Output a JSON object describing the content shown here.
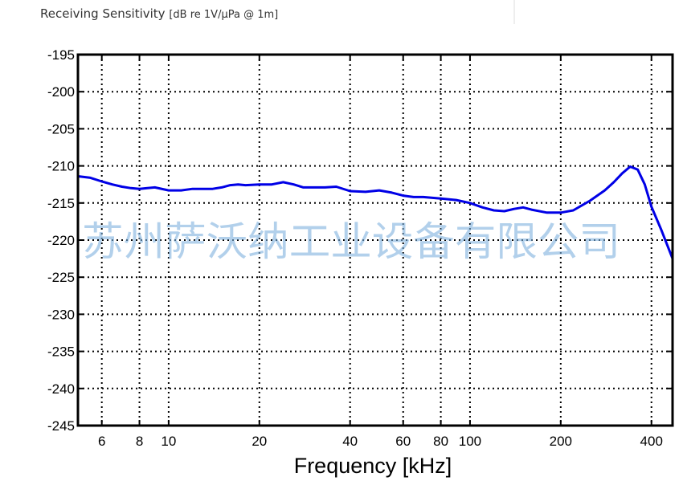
{
  "chart_data": {
    "type": "line",
    "title": "Receiving Sensitivity",
    "title_unit": "[dB re 1V/µPa @ 1m]",
    "xlabel": "Frequency [kHz]",
    "ylabel": "",
    "x_scale": "log",
    "xlim": [
      5,
      470
    ],
    "ylim": [
      -245,
      -195
    ],
    "x_ticks": [
      6,
      8,
      10,
      20,
      40,
      60,
      80,
      100,
      200,
      400
    ],
    "x_tick_labels": [
      "6",
      "8",
      "10",
      "20",
      "40",
      "60",
      "80",
      "100",
      "200",
      "400"
    ],
    "y_ticks": [
      -195,
      -200,
      -205,
      -210,
      -215,
      -220,
      -225,
      -230,
      -235,
      -240,
      -245
    ],
    "y_tick_labels": [
      "-195",
      "-200",
      "-205",
      "-210",
      "-215",
      "-220",
      "-225",
      "-230",
      "-235",
      "-240",
      "-245"
    ],
    "grid": true,
    "line_color": "#0000e6",
    "watermark": "苏州萨沃纳工业设备有限公司",
    "series": [
      {
        "x": [
          5,
          5.5,
          6,
          6.5,
          7,
          7.5,
          8,
          8.5,
          9,
          10,
          11,
          12,
          13,
          14,
          15,
          16,
          17,
          18,
          20,
          22,
          24,
          26,
          28,
          30,
          33,
          36,
          40,
          45,
          50,
          55,
          60,
          65,
          70,
          80,
          90,
          100,
          110,
          120,
          130,
          140,
          150,
          160,
          180,
          200,
          220,
          250,
          280,
          300,
          320,
          340,
          360,
          380,
          400,
          430,
          470
        ],
        "y": [
          -211.4,
          -211.6,
          -212.1,
          -212.5,
          -212.8,
          -213.0,
          -213.1,
          -213.0,
          -212.9,
          -213.3,
          -213.3,
          -213.1,
          -213.1,
          -213.1,
          -212.9,
          -212.6,
          -212.5,
          -212.6,
          -212.5,
          -212.5,
          -212.2,
          -212.5,
          -212.9,
          -212.9,
          -212.9,
          -212.8,
          -213.4,
          -213.5,
          -213.3,
          -213.6,
          -214.0,
          -214.2,
          -214.2,
          -214.4,
          -214.6,
          -215.0,
          -215.6,
          -216.0,
          -216.1,
          -215.8,
          -215.6,
          -215.9,
          -216.3,
          -216.3,
          -216.0,
          -214.7,
          -213.3,
          -212.2,
          -211.0,
          -210.1,
          -210.5,
          -212.5,
          -215.5,
          -218.5,
          -222.5
        ]
      }
    ]
  }
}
